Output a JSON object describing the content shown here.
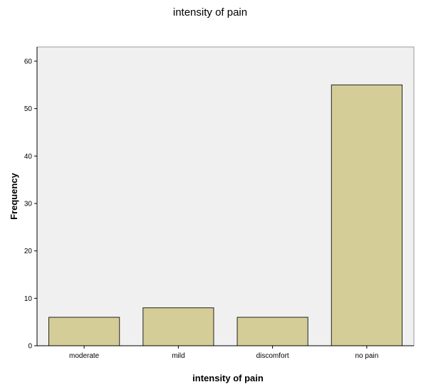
{
  "chart_data": {
    "type": "bar",
    "title": "intensity of pain",
    "xlabel": "intensity of pain",
    "ylabel": "Frequency",
    "categories": [
      "moderate",
      "mild",
      "discomfort",
      "no pain"
    ],
    "values": [
      6,
      8,
      6,
      55
    ],
    "ylim": [
      0,
      63
    ],
    "yticks": [
      0,
      10,
      20,
      30,
      40,
      50,
      60
    ],
    "grid": false,
    "legend": "none",
    "colors": {
      "bar_fill": "#d4cd98",
      "bar_stroke": "#222222",
      "plot_background": "#f0f0f0",
      "axis": "#000000"
    }
  }
}
